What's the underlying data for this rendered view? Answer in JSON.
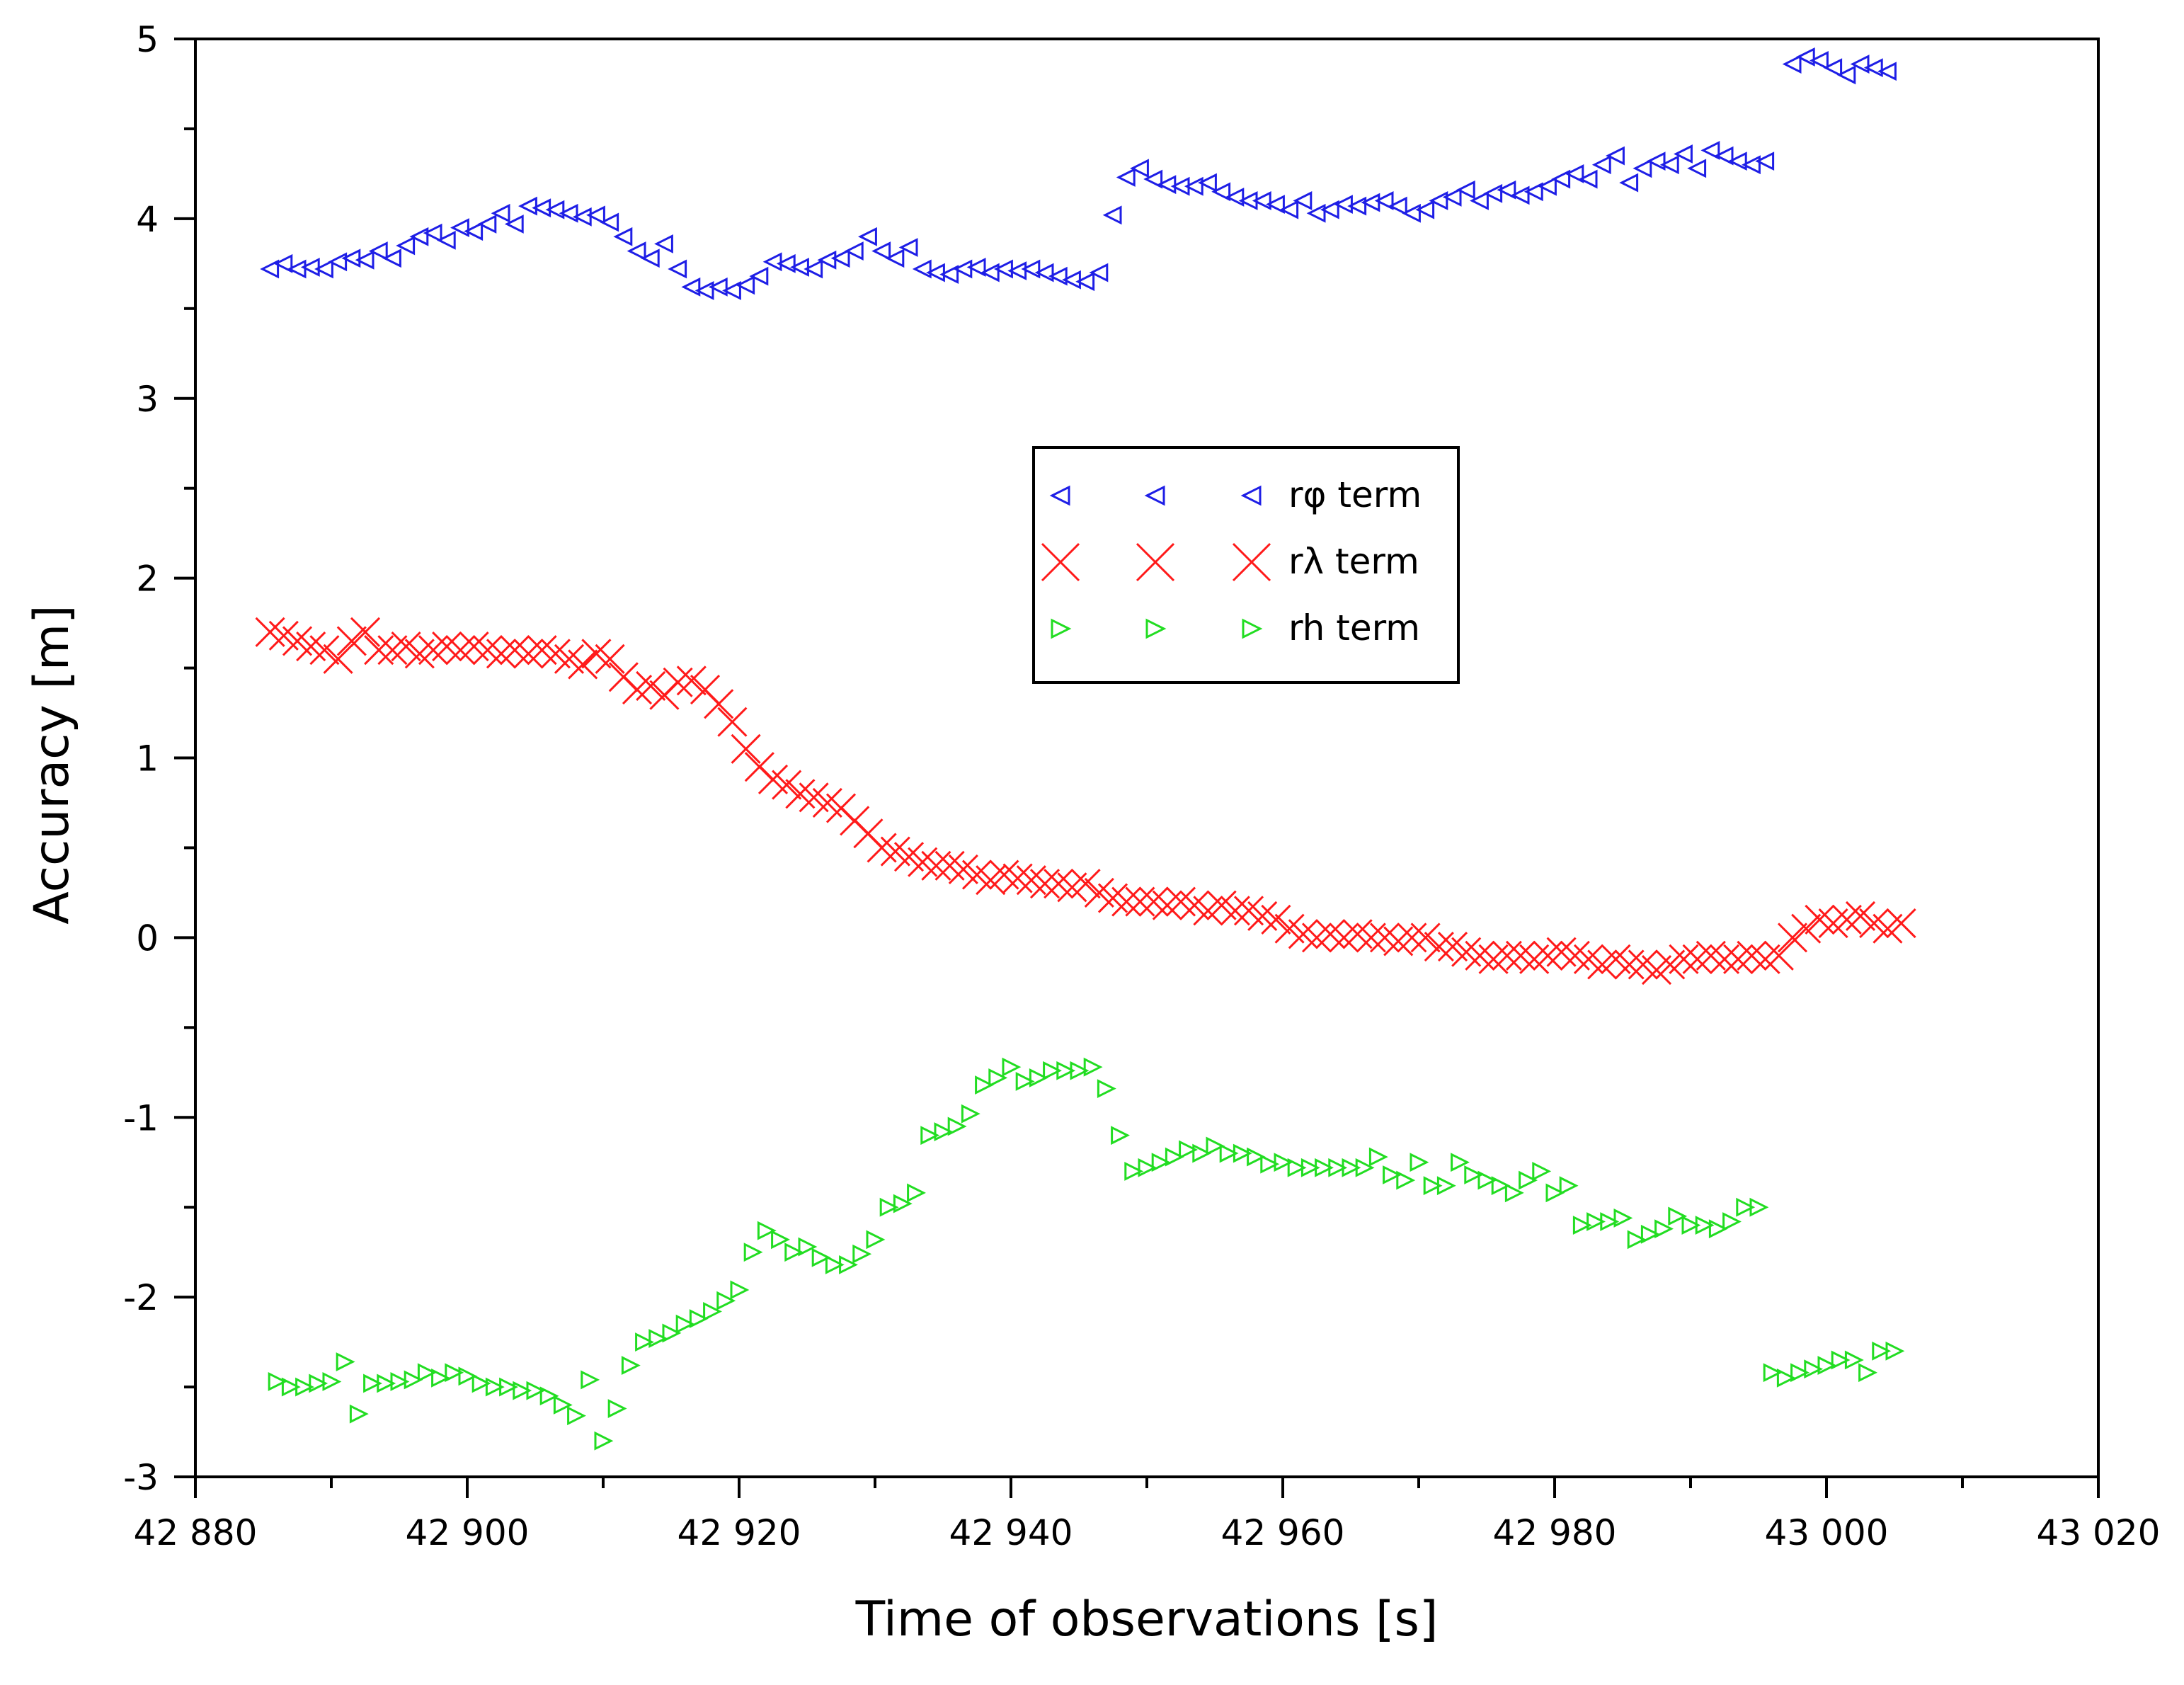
{
  "chart_data": {
    "type": "scatter",
    "title": "",
    "xlabel": "Time of observations [s]",
    "ylabel": "Accuracy [m]",
    "xlim": [
      42880,
      43020
    ],
    "ylim": [
      -3,
      5
    ],
    "x_ticks": [
      42880,
      42900,
      42920,
      42940,
      42960,
      42980,
      43000,
      43020
    ],
    "x_tick_labels": [
      "42 880",
      "42 900",
      "42 920",
      "42 940",
      "42 960",
      "42 980",
      "43 000",
      "43 020"
    ],
    "y_ticks": [
      -3,
      -2,
      -1,
      0,
      1,
      2,
      3,
      4,
      5
    ],
    "y_tick_labels": [
      "-3",
      "-2",
      "-1",
      "0",
      "1",
      "2",
      "3",
      "4",
      "5"
    ],
    "grid": false,
    "legend_position": "center",
    "series": [
      {
        "name": "rφ term",
        "color": "#1e1ee6",
        "marker": "triangle-left",
        "x": [
          42885.5,
          42886.5,
          42887.5,
          42888.5,
          42889.5,
          42890.5,
          42891.5,
          42892.5,
          42893.5,
          42894.5,
          42895.5,
          42896.5,
          42897.5,
          42898.5,
          42899.5,
          42900.5,
          42901.5,
          42902.5,
          42903.5,
          42904.5,
          42905.5,
          42906.5,
          42907.5,
          42908.5,
          42909.5,
          42910.5,
          42911.5,
          42912.5,
          42913.5,
          42914.5,
          42915.5,
          42916.5,
          42917.5,
          42918.5,
          42919.5,
          42920.5,
          42921.5,
          42922.5,
          42923.5,
          42924.5,
          42925.5,
          42926.5,
          42927.5,
          42928.5,
          42929.5,
          42930.5,
          42931.5,
          42932.5,
          42933.5,
          42934.5,
          42935.5,
          42936.5,
          42937.5,
          42938.5,
          42939.5,
          42940.5,
          42941.5,
          42942.5,
          42943.5,
          42944.5,
          42945.5,
          42946.5,
          42947.5,
          42948.5,
          42949.5,
          42950.5,
          42951.5,
          42952.5,
          42953.5,
          42954.5,
          42955.5,
          42956.5,
          42957.5,
          42958.5,
          42959.5,
          42960.5,
          42961.5,
          42962.5,
          42963.5,
          42964.5,
          42965.5,
          42966.5,
          42967.5,
          42968.5,
          42969.5,
          42970.5,
          42971.5,
          42972.5,
          42973.5,
          42974.5,
          42975.5,
          42976.5,
          42977.5,
          42978.5,
          42979.5,
          42980.5,
          42981.5,
          42982.5,
          42983.5,
          42984.5,
          42985.5,
          42986.5,
          42987.5,
          42988.5,
          42989.5,
          42990.5,
          42991.5,
          42992.5,
          42993.5,
          42994.5,
          42995.5,
          42997.5,
          42998.5,
          42999.5,
          43000.5,
          43001.5,
          43002.5,
          43003.5,
          43004.5
        ],
        "y": [
          3.72,
          3.75,
          3.72,
          3.73,
          3.72,
          3.76,
          3.78,
          3.77,
          3.82,
          3.78,
          3.85,
          3.9,
          3.92,
          3.88,
          3.95,
          3.93,
          3.97,
          4.03,
          3.97,
          4.07,
          4.06,
          4.05,
          4.03,
          4.01,
          4.02,
          3.98,
          3.9,
          3.82,
          3.78,
          3.86,
          3.72,
          3.62,
          3.6,
          3.62,
          3.6,
          3.63,
          3.68,
          3.76,
          3.75,
          3.73,
          3.72,
          3.77,
          3.78,
          3.82,
          3.9,
          3.82,
          3.78,
          3.84,
          3.72,
          3.7,
          3.69,
          3.72,
          3.73,
          3.7,
          3.72,
          3.71,
          3.72,
          3.7,
          3.68,
          3.66,
          3.65,
          3.7,
          4.02,
          4.23,
          4.28,
          4.22,
          4.19,
          4.18,
          4.18,
          4.2,
          4.15,
          4.12,
          4.1,
          4.1,
          4.08,
          4.05,
          4.1,
          4.03,
          4.05,
          4.08,
          4.07,
          4.09,
          4.1,
          4.07,
          4.03,
          4.05,
          4.1,
          4.12,
          4.16,
          4.1,
          4.14,
          4.16,
          4.13,
          4.15,
          4.18,
          4.22,
          4.25,
          4.22,
          4.3,
          4.35,
          4.2,
          4.28,
          4.32,
          4.3,
          4.36,
          4.28,
          4.38,
          4.35,
          4.32,
          4.3,
          4.32,
          4.86,
          4.9,
          4.88,
          4.84,
          4.8,
          4.86,
          4.84,
          4.82
        ]
      },
      {
        "name": "rλ term",
        "color": "#ff1a1a",
        "marker": "x",
        "x": [
          42885.5,
          42886.5,
          42887.5,
          42888.5,
          42889.5,
          42890.5,
          42891.5,
          42892.5,
          42893.5,
          42894.5,
          42895.5,
          42896.5,
          42897.5,
          42898.5,
          42899.5,
          42900.5,
          42901.5,
          42902.5,
          42903.5,
          42904.5,
          42905.5,
          42906.5,
          42907.5,
          42908.5,
          42909.5,
          42910.5,
          42911.5,
          42912.5,
          42913.5,
          42914.5,
          42915.5,
          42916.5,
          42917.5,
          42918.5,
          42919.5,
          42920.5,
          42921.5,
          42922.5,
          42923.5,
          42924.5,
          42925.5,
          42926.5,
          42927.5,
          42928.5,
          42929.5,
          42930.5,
          42931.5,
          42932.5,
          42933.5,
          42934.5,
          42935.5,
          42936.5,
          42937.5,
          42938.5,
          42939.5,
          42940.5,
          42941.5,
          42942.5,
          42943.5,
          42944.5,
          42945.5,
          42946.5,
          42947.5,
          42948.5,
          42949.5,
          42950.5,
          42951.5,
          42952.5,
          42953.5,
          42954.5,
          42955.5,
          42956.5,
          42957.5,
          42958.5,
          42959.5,
          42960.5,
          42961.5,
          42962.5,
          42963.5,
          42964.5,
          42965.5,
          42966.5,
          42967.5,
          42968.5,
          42969.5,
          42970.5,
          42971.5,
          42972.5,
          42973.5,
          42974.5,
          42975.5,
          42976.5,
          42977.5,
          42978.5,
          42979.5,
          42980.5,
          42981.5,
          42982.5,
          42983.5,
          42984.5,
          42985.5,
          42986.5,
          42987.5,
          42988.5,
          42989.5,
          42990.5,
          42991.5,
          42992.5,
          42993.5,
          42994.5,
          42995.5,
          42996.5,
          42997.5,
          42998.5,
          42999.5,
          43000.5,
          43001.5,
          43002.5,
          43003.5,
          43004.5,
          43005.5
        ],
        "y": [
          1.7,
          1.68,
          1.65,
          1.62,
          1.6,
          1.55,
          1.65,
          1.7,
          1.6,
          1.6,
          1.62,
          1.58,
          1.6,
          1.62,
          1.6,
          1.62,
          1.6,
          1.58,
          1.6,
          1.58,
          1.6,
          1.58,
          1.55,
          1.52,
          1.58,
          1.55,
          1.45,
          1.38,
          1.4,
          1.35,
          1.42,
          1.43,
          1.38,
          1.3,
          1.2,
          1.05,
          0.95,
          0.88,
          0.85,
          0.8,
          0.78,
          0.75,
          0.72,
          0.65,
          0.58,
          0.5,
          0.48,
          0.45,
          0.42,
          0.4,
          0.4,
          0.38,
          0.35,
          0.32,
          0.35,
          0.33,
          0.32,
          0.3,
          0.3,
          0.28,
          0.3,
          0.25,
          0.22,
          0.2,
          0.2,
          0.2,
          0.18,
          0.2,
          0.18,
          0.15,
          0.18,
          0.15,
          0.15,
          0.12,
          0.1,
          0.05,
          0.02,
          0.0,
          0.02,
          0.0,
          0.02,
          0.0,
          0.0,
          -0.02,
          0.0,
          0.0,
          -0.05,
          -0.05,
          -0.08,
          -0.1,
          -0.12,
          -0.1,
          -0.1,
          -0.12,
          -0.1,
          -0.08,
          -0.1,
          -0.12,
          -0.15,
          -0.12,
          -0.15,
          -0.15,
          -0.18,
          -0.15,
          -0.12,
          -0.12,
          -0.1,
          -0.12,
          -0.12,
          -0.1,
          -0.12,
          -0.1,
          0.0,
          0.05,
          0.1,
          0.08,
          0.1,
          0.12,
          0.08,
          0.05,
          0.08
        ]
      },
      {
        "name": "rh term",
        "color": "#22dd22",
        "marker": "triangle-right",
        "x": [
          42886,
          42887,
          42888,
          42889,
          42890,
          42891,
          42892,
          42893,
          42894,
          42895,
          42896,
          42897,
          42898,
          42899,
          42900,
          42901,
          42902,
          42903,
          42904,
          42905,
          42906,
          42907,
          42908,
          42909,
          42910,
          42911,
          42912,
          42913,
          42914,
          42915,
          42916,
          42917,
          42918,
          42919,
          42920,
          42921,
          42922,
          42923,
          42924,
          42925,
          42926,
          42927,
          42928,
          42929,
          42930,
          42931,
          42932,
          42933,
          42934,
          42935,
          42936,
          42937,
          42938,
          42939,
          42940,
          42941,
          42942,
          42943,
          42944,
          42945,
          42946,
          42947,
          42948,
          42949,
          42950,
          42951,
          42952,
          42953,
          42954,
          42955,
          42956,
          42957,
          42958,
          42959,
          42960,
          42961,
          42962,
          42963,
          42964,
          42965,
          42966,
          42967,
          42968,
          42969,
          42970,
          42971,
          42972,
          42973,
          42974,
          42975,
          42976,
          42977,
          42978,
          42979,
          42980,
          42981,
          42982,
          42983,
          42984,
          42985,
          42986,
          42987,
          42988,
          42989,
          42990,
          42991,
          42992,
          42993,
          42994,
          42995,
          42996,
          42997,
          42998,
          42999,
          43000,
          43001,
          43002,
          43003,
          43004,
          43005
        ],
        "y": [
          -2.47,
          -2.5,
          -2.5,
          -2.48,
          -2.47,
          -2.36,
          -2.65,
          -2.48,
          -2.48,
          -2.47,
          -2.46,
          -2.42,
          -2.45,
          -2.42,
          -2.44,
          -2.48,
          -2.5,
          -2.5,
          -2.52,
          -2.52,
          -2.55,
          -2.6,
          -2.66,
          -2.46,
          -2.8,
          -2.62,
          -2.38,
          -2.25,
          -2.23,
          -2.2,
          -2.15,
          -2.12,
          -2.08,
          -2.02,
          -1.96,
          -1.75,
          -1.63,
          -1.68,
          -1.75,
          -1.72,
          -1.78,
          -1.82,
          -1.82,
          -1.76,
          -1.68,
          -1.5,
          -1.48,
          -1.42,
          -1.1,
          -1.08,
          -1.05,
          -0.98,
          -0.82,
          -0.78,
          -0.72,
          -0.8,
          -0.78,
          -0.74,
          -0.74,
          -0.74,
          -0.72,
          -0.84,
          -1.1,
          -1.3,
          -1.28,
          -1.25,
          -1.22,
          -1.18,
          -1.2,
          -1.16,
          -1.2,
          -1.2,
          -1.22,
          -1.26,
          -1.25,
          -1.28,
          -1.28,
          -1.28,
          -1.28,
          -1.28,
          -1.28,
          -1.22,
          -1.32,
          -1.35,
          -1.25,
          -1.38,
          -1.38,
          -1.25,
          -1.32,
          -1.35,
          -1.38,
          -1.42,
          -1.35,
          -1.3,
          -1.42,
          -1.38,
          -1.6,
          -1.58,
          -1.58,
          -1.56,
          -1.68,
          -1.65,
          -1.62,
          -1.55,
          -1.6,
          -1.6,
          -1.62,
          -1.58,
          -1.5,
          -1.5,
          -2.42,
          -2.45,
          -2.42,
          -2.4,
          -2.38,
          -2.35,
          -2.35,
          -2.42,
          -2.3,
          -2.3
        ]
      }
    ]
  }
}
